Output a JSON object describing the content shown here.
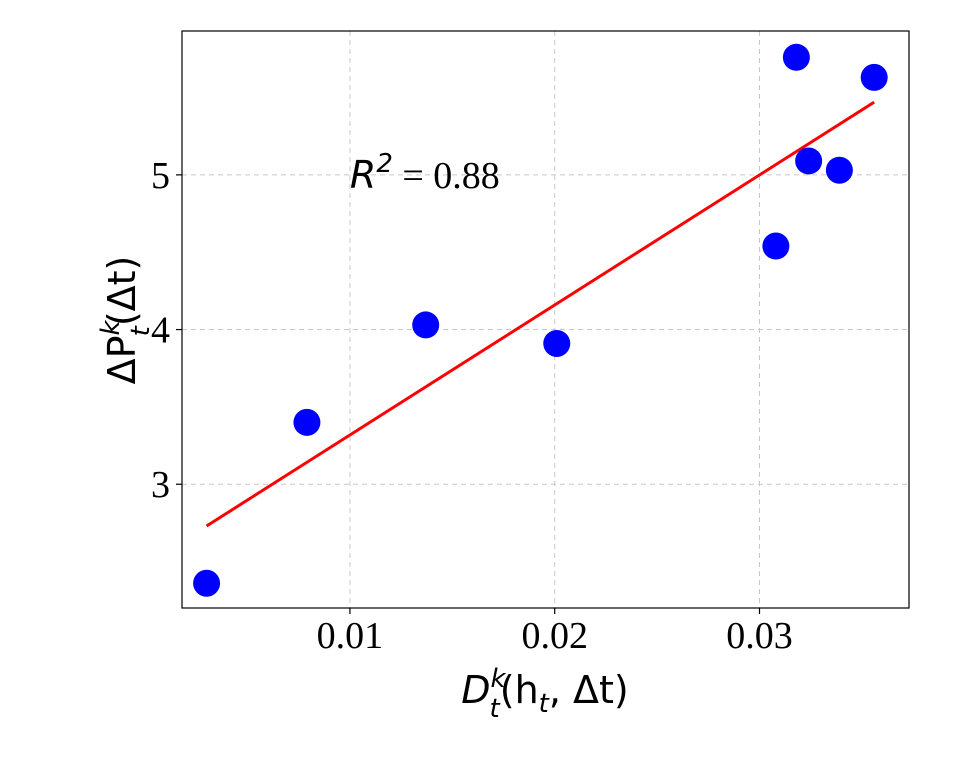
{
  "chart_data": {
    "type": "scatter",
    "xlabel": {
      "base": "D",
      "sup": "k",
      "sub": "t",
      "args": "(h",
      "args_sub": "t",
      "args_end": ", Δt)"
    },
    "ylabel": {
      "base": "ΔP",
      "sup": "k",
      "sub": "t",
      "args": "(Δt)"
    },
    "xlim": [
      0.0018,
      0.0373
    ],
    "ylim": [
      2.2,
      5.93
    ],
    "xticks": [
      {
        "value": 0.01,
        "label": "0.01"
      },
      {
        "value": 0.02,
        "label": "0.02"
      },
      {
        "value": 0.03,
        "label": "0.03"
      }
    ],
    "yticks": [
      {
        "value": 3,
        "label": "3"
      },
      {
        "value": 4,
        "label": "4"
      },
      {
        "value": 5,
        "label": "5"
      }
    ],
    "grid": true,
    "points": [
      {
        "x": 0.003,
        "y": 2.36
      },
      {
        "x": 0.0079,
        "y": 3.4
      },
      {
        "x": 0.0137,
        "y": 4.03
      },
      {
        "x": 0.0201,
        "y": 3.91
      },
      {
        "x": 0.0308,
        "y": 4.54
      },
      {
        "x": 0.0318,
        "y": 5.76
      },
      {
        "x": 0.0324,
        "y": 5.09
      },
      {
        "x": 0.0339,
        "y": 5.03
      },
      {
        "x": 0.0356,
        "y": 5.63
      }
    ],
    "point_color": "#0000ff",
    "fit_line": {
      "x": [
        0.003,
        0.0356
      ],
      "y": [
        2.73,
        5.47
      ],
      "color": "#ff0000"
    },
    "annotation": {
      "symbol": "R",
      "sup": "2",
      "text": " = 0.88",
      "x": 0.01,
      "y": 5.0
    }
  }
}
